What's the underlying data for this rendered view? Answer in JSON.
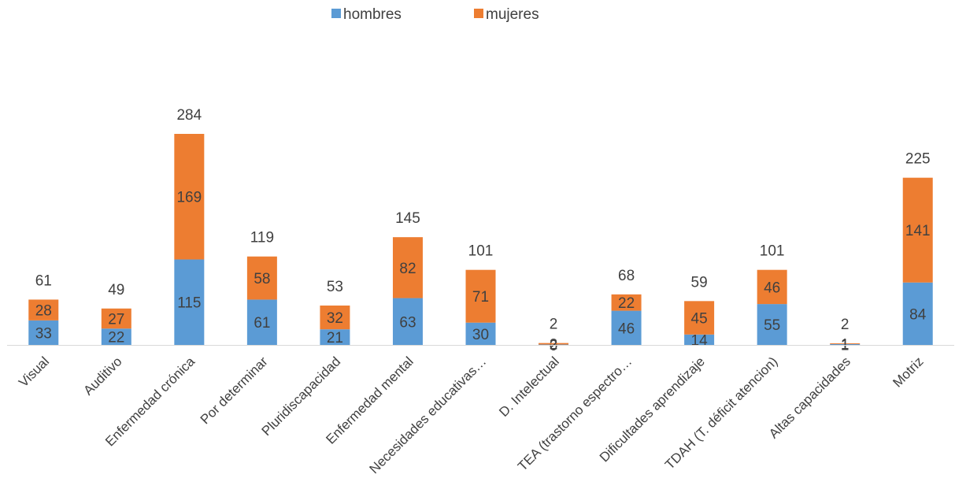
{
  "chart_data": {
    "type": "bar",
    "stacked": true,
    "categories": [
      "Visual",
      "Auditivo",
      "Enfermedad crónica",
      "Por determinar",
      "Pluridiscapacidad",
      "Enfermedad mental",
      "Necesidades educativas…",
      "D. Intelectual",
      "TEA (trastorno espectro…",
      "Dificultades aprendizaje",
      "TDAH (T. déficit atencion)",
      "Altas capacidades",
      "Motriz"
    ],
    "series": [
      {
        "name": "hombres",
        "color": "#5B9BD5",
        "values": [
          33,
          22,
          115,
          61,
          21,
          63,
          30,
          0,
          46,
          14,
          55,
          1,
          84
        ]
      },
      {
        "name": "mujeres",
        "color": "#ED7D31",
        "values": [
          28,
          27,
          169,
          58,
          32,
          82,
          71,
          2,
          22,
          45,
          46,
          1,
          141
        ]
      }
    ],
    "totals": [
      61,
      49,
      284,
      119,
      53,
      145,
      101,
      2,
      68,
      59,
      101,
      2,
      225
    ],
    "legend_position": "top",
    "grid": false,
    "ylim": [
      0,
      284
    ]
  }
}
